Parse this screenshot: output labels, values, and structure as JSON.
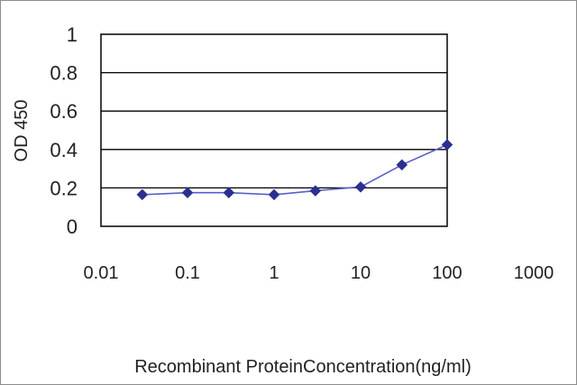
{
  "chart_data": {
    "type": "line",
    "title": "",
    "xlabel": "Recombinant ProteinConcentration(ng/ml)",
    "ylabel": "OD 450",
    "xscale": "log",
    "xlim": [
      0.01,
      1000
    ],
    "ylim": [
      0,
      1
    ],
    "x_ticks": [
      "0.01",
      "0.1",
      "1",
      "10",
      "100",
      "1000"
    ],
    "y_ticks": [
      "0",
      "0.2",
      "0.4",
      "0.6",
      "0.8",
      "1"
    ],
    "grid": "horizontal",
    "legend": "none",
    "series": [
      {
        "color": "#2b2f8f",
        "marker": "diamond",
        "x": [
          0.03,
          0.1,
          0.3,
          1,
          3,
          10,
          30,
          100
        ],
        "y": [
          0.165,
          0.175,
          0.175,
          0.165,
          0.185,
          0.205,
          0.32,
          0.425
        ]
      }
    ]
  }
}
